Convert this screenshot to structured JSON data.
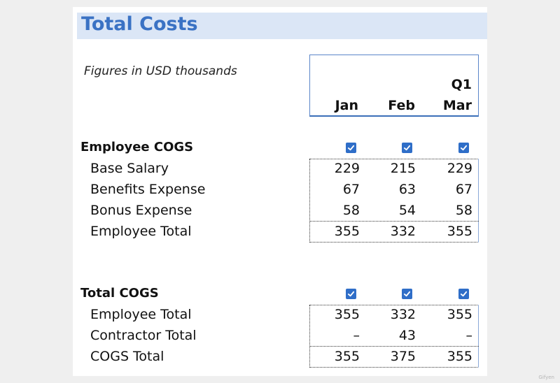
{
  "title": "Total Costs",
  "note": "Figures in USD thousands",
  "header": {
    "quarter": "Q1",
    "months": [
      "Jan",
      "Feb",
      "Mar"
    ]
  },
  "employee_cogs": {
    "label": "Employee COGS",
    "checked": [
      true,
      true,
      true
    ],
    "rows": [
      {
        "label": "Base Salary",
        "values": [
          "229",
          "215",
          "229"
        ]
      },
      {
        "label": "Benefits Expense",
        "values": [
          "67",
          "63",
          "67"
        ]
      },
      {
        "label": "Bonus Expense",
        "values": [
          "58",
          "54",
          "58"
        ]
      }
    ],
    "total": {
      "label": "Employee Total",
      "values": [
        "355",
        "332",
        "355"
      ]
    }
  },
  "total_cogs": {
    "label": "Total COGS",
    "checked": [
      true,
      true,
      true
    ],
    "rows": [
      {
        "label": "Employee Total",
        "values": [
          "355",
          "332",
          "355"
        ]
      },
      {
        "label": "Contractor Total",
        "values": [
          "–",
          "43",
          "–"
        ]
      }
    ],
    "total": {
      "label": "COGS Total",
      "values": [
        "355",
        "375",
        "355"
      ]
    }
  },
  "colors": {
    "title": "#3a72c4",
    "title_band": "#dbe6f6",
    "checkbox": "#2f6ec8"
  },
  "watermark": "Gifyen"
}
